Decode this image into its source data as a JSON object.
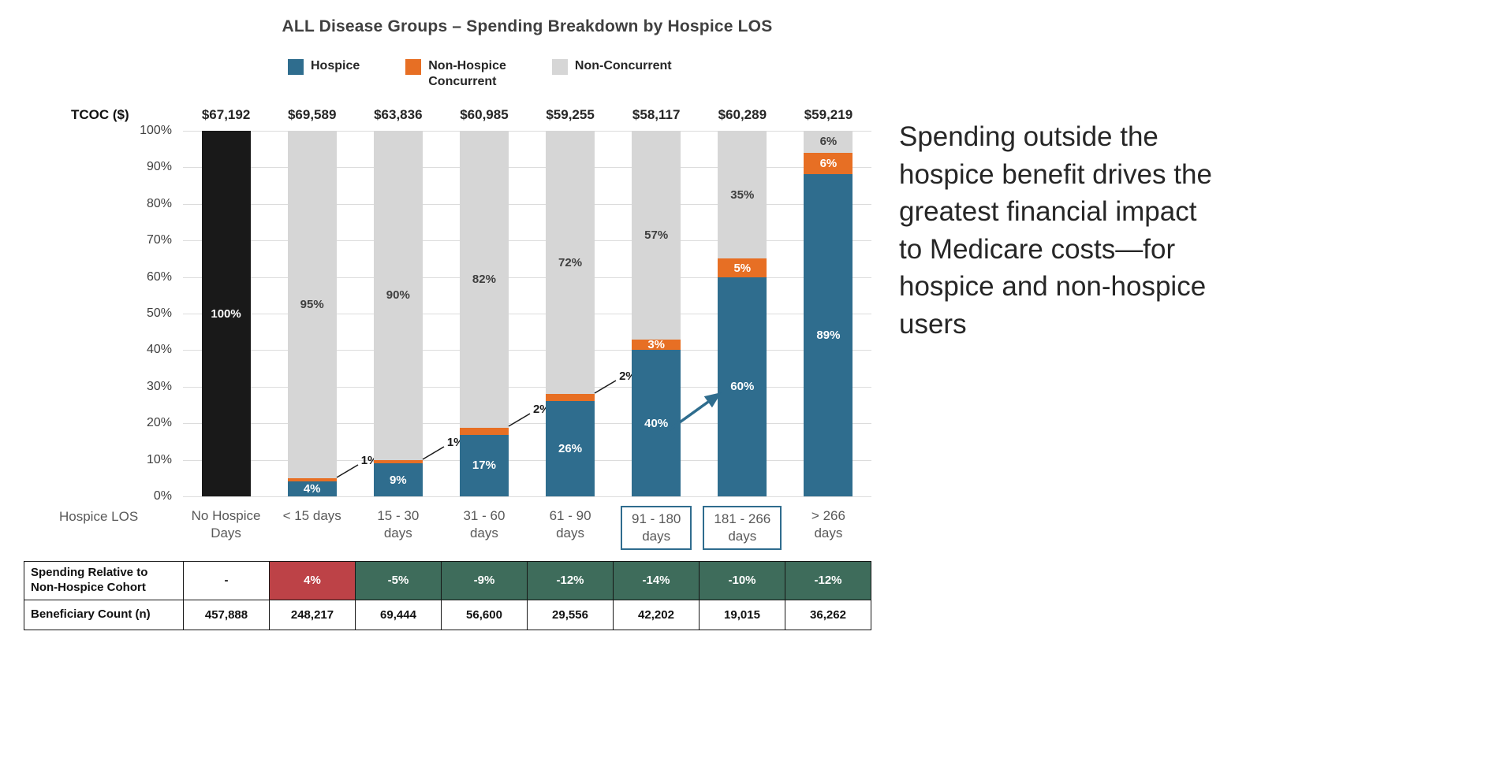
{
  "title": "ALL Disease Groups – Spending Breakdown by Hospice LOS",
  "annotation_text": "Spending outside the hospice benefit drives the greatest financial impact to Medicare costs—for hospice and non-hospice users",
  "axis": {
    "tcoc_label": "TCOC ($)",
    "x_label": "Hospice LOS",
    "yticks": [
      "100%",
      "90%",
      "80%",
      "70%",
      "60%",
      "50%",
      "40%",
      "30%",
      "20%",
      "10%",
      "0%"
    ]
  },
  "legend": [
    {
      "label": "Hospice",
      "color": "#2F6D8E"
    },
    {
      "label": "Non-Hospice\nConcurrent",
      "color": "#E76F24"
    },
    {
      "label": "Non-Concurrent",
      "color": "#D6D6D6"
    }
  ],
  "colors": {
    "hospice": "#2F6D8E",
    "concurrent": "#E76F24",
    "non_concurrent": "#D6D6D6",
    "no_hospice": "#191919",
    "arrow": "#2F6D8E",
    "table_green": "#3E6C5B",
    "table_red": "#BD4247",
    "boxed_label_border": "#2F6C8E"
  },
  "chart_data": {
    "type": "bar",
    "stacked": true,
    "ylim": [
      0,
      100
    ],
    "grid": true,
    "legend_position": "top",
    "categories": [
      "No Hospice\nDays",
      "< 15 days",
      "15 - 30\ndays",
      "31 - 60\ndays",
      "61 - 90\ndays",
      "91 - 180\ndays",
      "181 - 266\ndays",
      "> 266\ndays"
    ],
    "boxed_category_indexes": [
      5,
      6
    ],
    "tcoc_values": [
      "$67,192",
      "$69,589",
      "$63,836",
      "$60,985",
      "$59,255",
      "$58,117",
      "$60,289",
      "$59,219"
    ],
    "series": [
      {
        "name": "Hospice",
        "values": [
          0,
          4,
          9,
          17,
          26,
          40,
          60,
          89
        ]
      },
      {
        "name": "Non-Hospice Concurrent",
        "values": [
          0,
          1,
          1,
          2,
          2,
          3,
          5,
          6
        ]
      },
      {
        "name": "Non-Concurrent",
        "values": [
          0,
          95,
          90,
          82,
          72,
          57,
          35,
          6
        ]
      }
    ],
    "no_hospice_bar": {
      "index": 0,
      "value": 100,
      "label": "100%"
    }
  },
  "table": {
    "rows": [
      {
        "label": "Spending Relative to Non-Hospice Cohort",
        "values": [
          "-",
          "4%",
          "-5%",
          "-9%",
          "-12%",
          "-14%",
          "-10%",
          "-12%"
        ],
        "cell_styles": [
          "plain",
          "red",
          "green",
          "green",
          "green",
          "green",
          "green",
          "green"
        ]
      },
      {
        "label": "Beneficiary Count (n)",
        "values": [
          "457,888",
          "248,217",
          "69,444",
          "56,600",
          "29,556",
          "42,202",
          "19,015",
          "36,262"
        ],
        "cell_styles": [
          "plain",
          "plain",
          "plain",
          "plain",
          "plain",
          "plain",
          "plain",
          "plain"
        ]
      }
    ]
  }
}
